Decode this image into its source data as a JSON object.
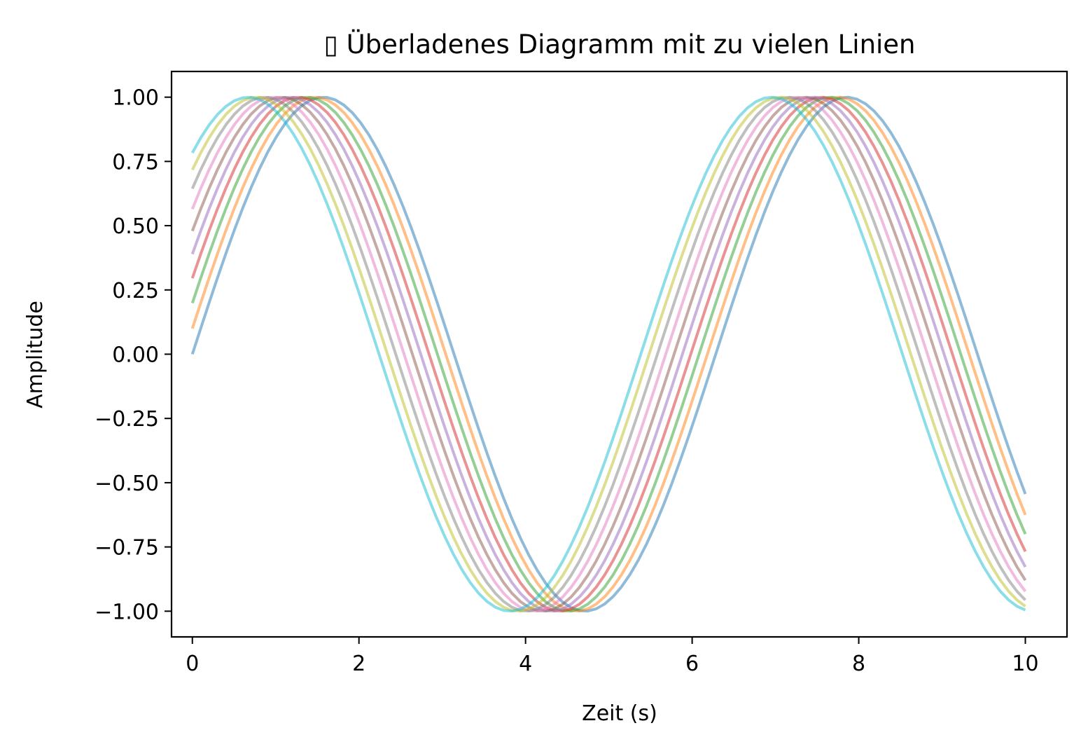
{
  "chart_data": {
    "type": "line",
    "title": "▯ Überladenes Diagramm mit zu vielen Linien",
    "xlabel": "Zeit (s)",
    "ylabel": "Amplitude",
    "xlim": [
      -0.25,
      10.5
    ],
    "ylim": [
      -1.1,
      1.1
    ],
    "grid": false,
    "legend": "none",
    "x_ticks": [
      0,
      2,
      4,
      6,
      8,
      10
    ],
    "x_tick_labels": [
      "0",
      "2",
      "4",
      "6",
      "8",
      "10"
    ],
    "y_ticks": [
      1.0,
      0.75,
      0.5,
      0.25,
      0.0,
      -0.25,
      -0.5,
      -0.75,
      -1.0
    ],
    "y_tick_labels": [
      "1.00",
      "0.75",
      "0.50",
      "0.25",
      "0.00",
      "−0.25",
      "−0.50",
      "−0.75",
      "−1.00"
    ],
    "x_range": [
      0,
      10
    ],
    "function": "sin(x + 0.1*i)",
    "series": [
      {
        "phase": 0.0,
        "color": "#1f77b4"
      },
      {
        "phase": 0.1,
        "color": "#ff7f0e"
      },
      {
        "phase": 0.2,
        "color": "#2ca02c"
      },
      {
        "phase": 0.3,
        "color": "#d62728"
      },
      {
        "phase": 0.4,
        "color": "#9467bd"
      },
      {
        "phase": 0.5,
        "color": "#8c564b"
      },
      {
        "phase": 0.6,
        "color": "#e377c2"
      },
      {
        "phase": 0.7,
        "color": "#7f7f7f"
      },
      {
        "phase": 0.8,
        "color": "#bcbd22"
      },
      {
        "phase": 0.9,
        "color": "#17becf"
      }
    ]
  }
}
